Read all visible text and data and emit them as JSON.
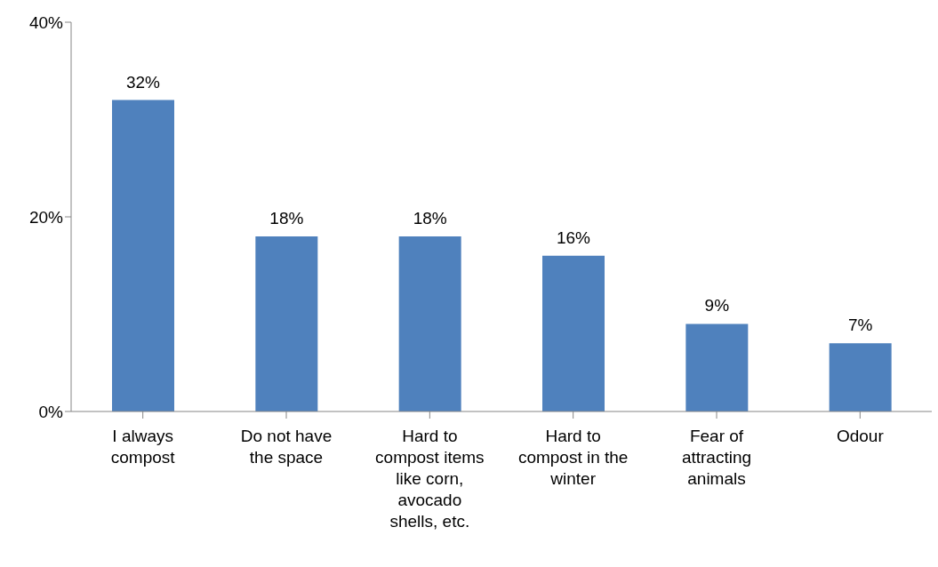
{
  "chart_data": {
    "type": "bar",
    "categories": [
      "I always compost",
      "Do not have the space",
      "Hard to compost items like corn, avocado shells, etc.",
      "Hard to compost in the winter",
      "Fear of attracting animals",
      "Odour"
    ],
    "values": [
      32,
      18,
      18,
      16,
      9,
      7
    ],
    "value_labels": [
      "32%",
      "18%",
      "18%",
      "16%",
      "9%",
      "7%"
    ],
    "color": "#4f81bd",
    "ylim": [
      0,
      40
    ],
    "yticks": [
      {
        "value": 0,
        "label": "0%"
      },
      {
        "value": 20,
        "label": "20%"
      },
      {
        "value": 40,
        "label": "40%"
      }
    ],
    "grid": false,
    "legend": false
  }
}
